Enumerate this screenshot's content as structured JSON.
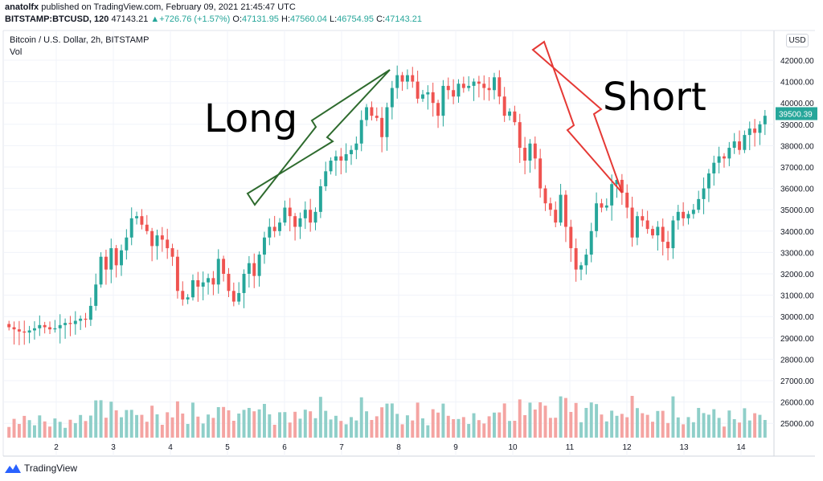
{
  "header": {
    "author": "anatolfx",
    "published": "published on TradingView.com, February 09, 2021 21:45:47 UTC",
    "symbol": "BITSTAMP:BTCUSD, 120",
    "last": "47143.21",
    "change_arrow": "▲",
    "change": "+726.76 (+1.57%)",
    "o_label": "O:",
    "o_value": "47131.95",
    "h_label": "H:",
    "h_value": "47560.04",
    "l_label": "L:",
    "l_value": "46754.95",
    "c_label": "C:",
    "c_value": "47143.21"
  },
  "chart_title": "Bitcoin / U.S. Dollar, 2h, BITSTAMP",
  "vol_label": "Vol",
  "currency": "USD",
  "price_tag": "39500.39",
  "footer": {
    "brand": "TradingView",
    "logo_icon": "tradingview-logo-icon"
  },
  "annotations": {
    "long": "Long",
    "short": "Short"
  },
  "colors": {
    "up": "#26a69a",
    "down": "#ef5350",
    "vol_up": "#8fcfc9",
    "vol_down": "#f4a4a2",
    "long_arrow": "#2e6b2e",
    "short_arrow": "#e53935",
    "price_tag_bg": "#26a69a"
  },
  "chart_data": {
    "type": "candlestick",
    "title": "Bitcoin / U.S. Dollar, 2h, BITSTAMP",
    "x_tick_labels": [
      "2",
      "3",
      "4",
      "5",
      "6",
      "7",
      "8",
      "9",
      "10",
      "11",
      "12",
      "13",
      "14"
    ],
    "y_tick_labels": [
      "42000.00",
      "41000.00",
      "40000.00",
      "39000.00",
      "38000.00",
      "37000.00",
      "36000.00",
      "35000.00",
      "34000.00",
      "33000.00",
      "32000.00",
      "31000.00",
      "30000.00",
      "29000.00",
      "28000.00",
      "27000.00",
      "26000.00",
      "25000.00"
    ],
    "ylim": [
      24500,
      43000
    ],
    "grid": true,
    "series": [
      {
        "name": "price",
        "close": [
          29500,
          29400,
          29300,
          29250,
          29350,
          29450,
          29600,
          29500,
          29400,
          29450,
          29600,
          29700,
          29650,
          29800,
          29900,
          29850,
          30500,
          31500,
          32800,
          32200,
          33200,
          32400,
          33100,
          33700,
          34600,
          34700,
          34300,
          34000,
          33300,
          33800,
          33600,
          33200,
          32800,
          31200,
          30800,
          30900,
          31700,
          31400,
          31600,
          31800,
          31500,
          32700,
          32000,
          31200,
          30700,
          31100,
          32000,
          32500,
          31900,
          32900,
          33700,
          34200,
          34000,
          34400,
          35100,
          34700,
          34200,
          34600,
          35000,
          34400,
          34900,
          36100,
          36800,
          37300,
          37500,
          37300,
          37600,
          37800,
          38100,
          39200,
          39800,
          39400,
          39300,
          38400,
          39800,
          40700,
          41300,
          41000,
          41300,
          41000,
          40200,
          40400,
          40500,
          40000,
          39400,
          40800,
          40600,
          40300,
          40900,
          40700,
          40800,
          41000,
          40900,
          40700,
          40600,
          41200,
          40300,
          39400,
          39600,
          39100,
          37900,
          37300,
          38100,
          37400,
          36000,
          35300,
          35000,
          34400,
          35700,
          34200,
          33200,
          32200,
          32400,
          32900,
          34000,
          35300,
          35100,
          35200,
          36200,
          36400,
          35800,
          35100,
          33700,
          34700,
          34500,
          34100,
          33800,
          34200,
          33500,
          33200,
          34500,
          34900,
          34600,
          34800,
          35000,
          35500,
          36000,
          36700,
          37200,
          37500,
          37400,
          37900,
          38200,
          37800,
          38500,
          38800,
          38600,
          39000,
          39400
        ]
      }
    ],
    "volume_note": "volume bars shown below price"
  }
}
